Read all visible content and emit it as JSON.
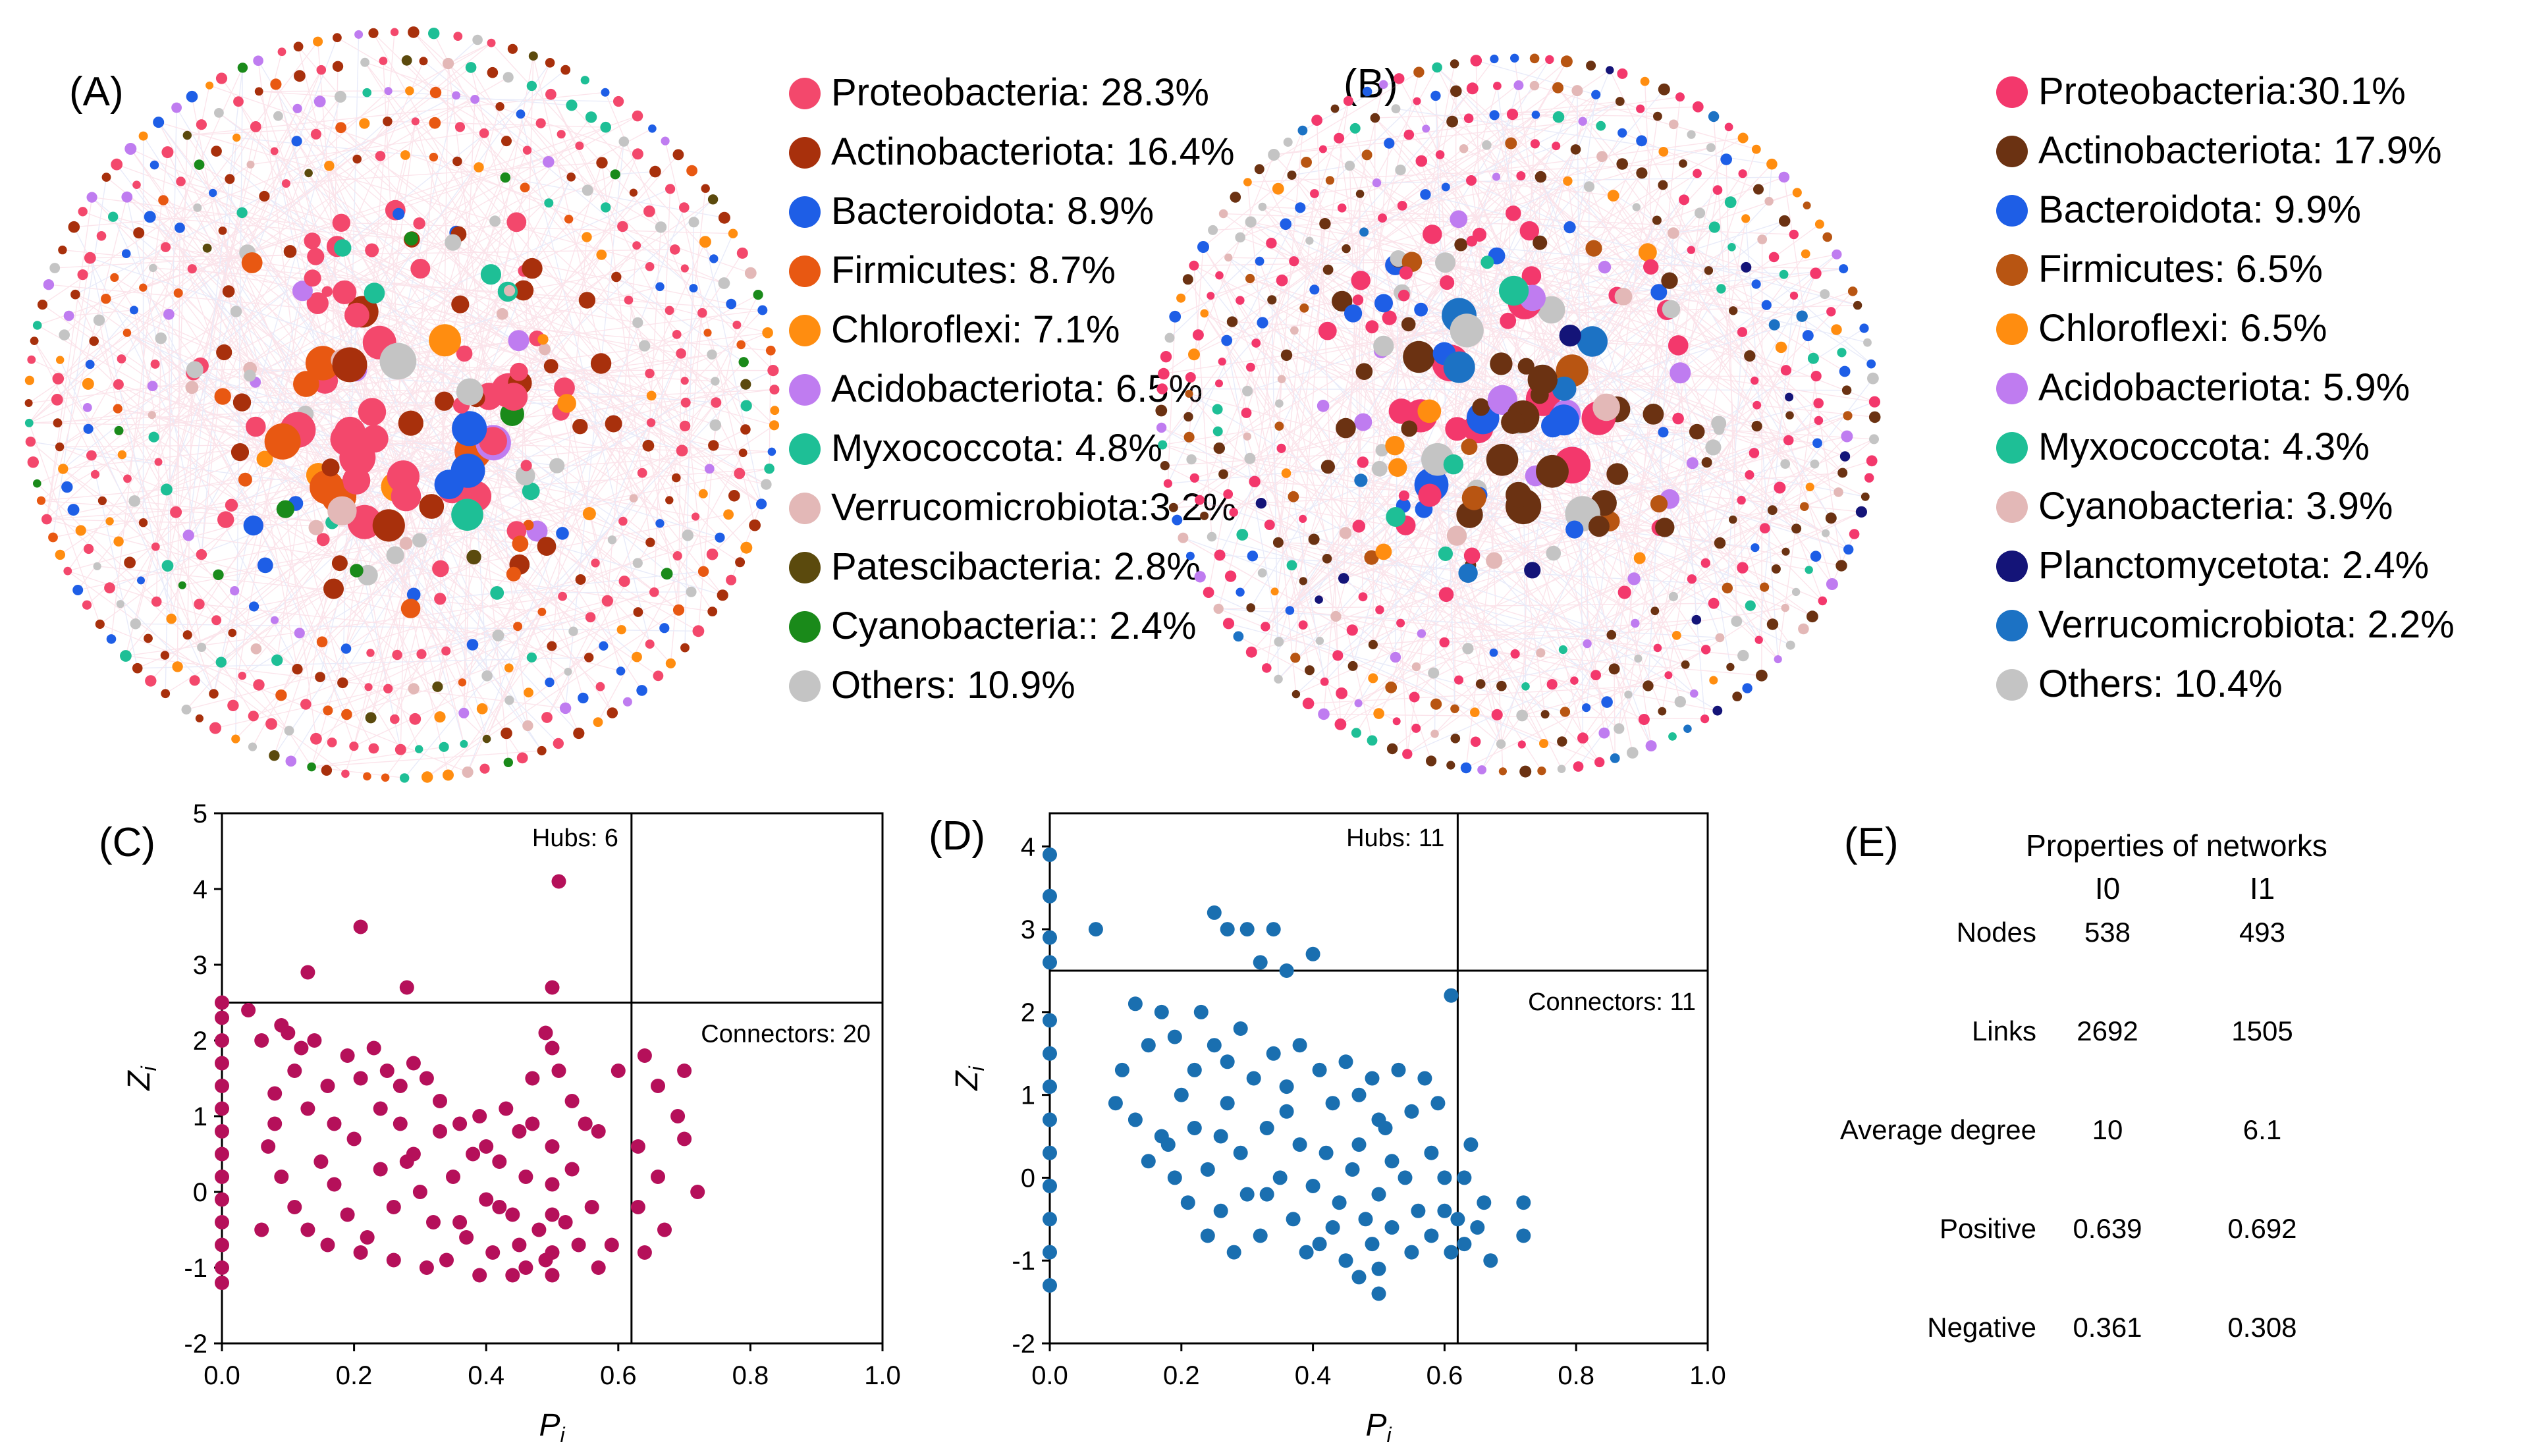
{
  "panels": {
    "A": {
      "label": "(A)",
      "legend": [
        {
          "name": "Proteobacteria: 28.3%",
          "color": "#f3486c"
        },
        {
          "name": "Actinobacteriota: 16.4%",
          "color": "#a8300c"
        },
        {
          "name": "Bacteroidota: 8.9%",
          "color": "#1e5ee6"
        },
        {
          "name": "Firmicutes: 8.7%",
          "color": "#e85812"
        },
        {
          "name": "Chloroflexi: 7.1%",
          "color": "#ff8d10"
        },
        {
          "name": "Acidobacteriota: 6.5%",
          "color": "#bf7cf0"
        },
        {
          "name": "Myxococcota: 4.8%",
          "color": "#1ebf96"
        },
        {
          "name": "Verrucomicrobiota:3.2%",
          "color": "#e3b8b7"
        },
        {
          "name": "Patescibacteria: 2.8%",
          "color": "#5b4a0d"
        },
        {
          "name": "Cyanobacteria:: 2.4%",
          "color": "#1a8a1a"
        },
        {
          "name": "Others: 10.9%",
          "color": "#c4c4c4"
        }
      ]
    },
    "B": {
      "label": "(B)",
      "legend": [
        {
          "name": "Proteobacteria:30.1%",
          "color": "#f3386c"
        },
        {
          "name": "Actinobacteriota: 17.9%",
          "color": "#6b3212"
        },
        {
          "name": "Bacteroidota: 9.9%",
          "color": "#1e5ee6"
        },
        {
          "name": "Firmicutes: 6.5%",
          "color": "#b85512"
        },
        {
          "name": "Chloroflexi: 6.5%",
          "color": "#ff8d10"
        },
        {
          "name": "Acidobacteriota: 5.9%",
          "color": "#bf7cf0"
        },
        {
          "name": "Myxococcota: 4.3%",
          "color": "#1ebf96"
        },
        {
          "name": "Cyanobacteria: 3.9%",
          "color": "#e3b8b7"
        },
        {
          "name": "Planctomycetota: 2.4%",
          "color": "#141478"
        },
        {
          "name": " Verrucomicrobiota: 2.2%",
          "color": "#1c72c4"
        },
        {
          "name": "Others: 10.4%",
          "color": "#c4c4c4"
        }
      ]
    },
    "E": {
      "label": "(E)",
      "title": "Properties of networks",
      "columns": [
        "I0",
        "I1"
      ],
      "rows": [
        {
          "label": "Nodes",
          "values": [
            "538",
            "493"
          ]
        },
        {
          "label": "Links",
          "values": [
            "2692",
            "1505"
          ]
        },
        {
          "label": "Average degree",
          "values": [
            "10",
            "6.1"
          ]
        },
        {
          "label": "Positive",
          "values": [
            "0.639",
            "0.692"
          ]
        },
        {
          "label": "Negative",
          "values": [
            "0.361",
            "0.308"
          ]
        }
      ]
    }
  },
  "chart_data": [
    {
      "type": "scatter",
      "panel": "(C)",
      "color": "#b5105a",
      "xlabel": "P",
      "xlabel_sub": "i",
      "ylabel": "Z",
      "ylabel_sub": "i",
      "xlim": [
        0,
        1.0
      ],
      "ylim": [
        -2,
        5
      ],
      "xticks": [
        "0.0",
        "0.2",
        "0.4",
        "0.6",
        "0.8",
        "1.0"
      ],
      "yticks": [
        "-2",
        "-1",
        "0",
        "1",
        "2",
        "3",
        "4",
        "5"
      ],
      "thresholds": {
        "x": 0.62,
        "y": 2.5
      },
      "annotations": {
        "hubs": "Hubs: 6",
        "connectors": "Connectors: 20"
      },
      "points": [
        [
          0.51,
          4.1
        ],
        [
          0.21,
          3.5
        ],
        [
          0.13,
          2.9
        ],
        [
          0.28,
          2.7
        ],
        [
          0.5,
          2.7
        ],
        [
          0.0,
          2.5
        ],
        [
          0.0,
          2.3
        ],
        [
          0.0,
          2.0
        ],
        [
          0.0,
          1.7
        ],
        [
          0.0,
          1.4
        ],
        [
          0.0,
          1.1
        ],
        [
          0.0,
          0.8
        ],
        [
          0.0,
          0.5
        ],
        [
          0.0,
          0.2
        ],
        [
          0.0,
          -0.1
        ],
        [
          0.0,
          -0.4
        ],
        [
          0.0,
          -0.7
        ],
        [
          0.0,
          -1.0
        ],
        [
          0.0,
          -1.2
        ],
        [
          0.04,
          2.4
        ],
        [
          0.06,
          2.0
        ],
        [
          0.08,
          1.3
        ],
        [
          0.09,
          2.2
        ],
        [
          0.1,
          2.1
        ],
        [
          0.11,
          1.6
        ],
        [
          0.12,
          1.9
        ],
        [
          0.14,
          2.0
        ],
        [
          0.16,
          1.4
        ],
        [
          0.19,
          1.8
        ],
        [
          0.21,
          1.5
        ],
        [
          0.23,
          1.9
        ],
        [
          0.25,
          1.6
        ],
        [
          0.27,
          1.4
        ],
        [
          0.29,
          1.7
        ],
        [
          0.31,
          1.5
        ],
        [
          0.33,
          1.2
        ],
        [
          0.36,
          0.9
        ],
        [
          0.39,
          1.0
        ],
        [
          0.43,
          1.1
        ],
        [
          0.45,
          0.8
        ],
        [
          0.47,
          1.5
        ],
        [
          0.49,
          2.1
        ],
        [
          0.5,
          1.9
        ],
        [
          0.51,
          1.6
        ],
        [
          0.53,
          1.2
        ],
        [
          0.55,
          0.9
        ],
        [
          0.57,
          0.8
        ],
        [
          0.6,
          1.6
        ],
        [
          0.64,
          1.8
        ],
        [
          0.66,
          1.4
        ],
        [
          0.7,
          1.6
        ],
        [
          0.07,
          0.6
        ],
        [
          0.09,
          0.2
        ],
        [
          0.11,
          -0.2
        ],
        [
          0.13,
          -0.5
        ],
        [
          0.15,
          0.4
        ],
        [
          0.17,
          0.1
        ],
        [
          0.19,
          -0.3
        ],
        [
          0.2,
          0.7
        ],
        [
          0.22,
          -0.6
        ],
        [
          0.24,
          0.3
        ],
        [
          0.26,
          -0.2
        ],
        [
          0.27,
          0.9
        ],
        [
          0.29,
          0.5
        ],
        [
          0.3,
          0.0
        ],
        [
          0.32,
          -0.4
        ],
        [
          0.33,
          0.8
        ],
        [
          0.35,
          0.2
        ],
        [
          0.37,
          -0.6
        ],
        [
          0.38,
          0.5
        ],
        [
          0.4,
          -0.1
        ],
        [
          0.41,
          -0.8
        ],
        [
          0.42,
          0.4
        ],
        [
          0.44,
          -0.3
        ],
        [
          0.45,
          -0.7
        ],
        [
          0.46,
          0.2
        ],
        [
          0.48,
          -0.5
        ],
        [
          0.49,
          -0.9
        ],
        [
          0.5,
          0.6
        ],
        [
          0.5,
          0.1
        ],
        [
          0.5,
          -0.3
        ],
        [
          0.5,
          -0.8
        ],
        [
          0.5,
          -1.1
        ],
        [
          0.52,
          -0.4
        ],
        [
          0.53,
          0.3
        ],
        [
          0.54,
          -0.7
        ],
        [
          0.56,
          -0.2
        ],
        [
          0.57,
          -1.0
        ],
        [
          0.59,
          -0.7
        ],
        [
          0.63,
          0.6
        ],
        [
          0.63,
          -0.2
        ],
        [
          0.64,
          -0.8
        ],
        [
          0.66,
          0.2
        ],
        [
          0.67,
          -0.5
        ],
        [
          0.69,
          1.0
        ],
        [
          0.7,
          0.7
        ],
        [
          0.72,
          0.0
        ],
        [
          0.13,
          1.1
        ],
        [
          0.17,
          0.9
        ],
        [
          0.24,
          1.1
        ],
        [
          0.28,
          0.4
        ],
        [
          0.34,
          -0.9
        ],
        [
          0.36,
          -0.4
        ],
        [
          0.39,
          -1.1
        ],
        [
          0.42,
          -0.2
        ],
        [
          0.46,
          -1.0
        ],
        [
          0.47,
          0.9
        ],
        [
          0.06,
          -0.5
        ],
        [
          0.08,
          0.9
        ],
        [
          0.16,
          -0.7
        ],
        [
          0.21,
          -0.8
        ],
        [
          0.26,
          -0.9
        ],
        [
          0.31,
          -1.0
        ],
        [
          0.4,
          0.6
        ],
        [
          0.44,
          -1.1
        ]
      ]
    },
    {
      "type": "scatter",
      "panel": "(D)",
      "color": "#1a6fb0",
      "xlabel": "P",
      "xlabel_sub": "i",
      "ylabel": "Z",
      "ylabel_sub": "i",
      "xlim": [
        0,
        1.0
      ],
      "ylim": [
        -2,
        4.4
      ],
      "xticks": [
        "0.0",
        "0.2",
        "0.4",
        "0.6",
        "0.8",
        "1.0"
      ],
      "yticks": [
        "-2",
        "-1",
        "0",
        "1",
        "2",
        "3",
        "4"
      ],
      "thresholds": {
        "x": 0.62,
        "y": 2.5
      },
      "annotations": {
        "hubs": "Hubs: 11",
        "connectors": "Connectors: 11"
      },
      "points": [
        [
          0.0,
          3.9
        ],
        [
          0.0,
          3.4
        ],
        [
          0.0,
          2.9
        ],
        [
          0.07,
          3.0
        ],
        [
          0.25,
          3.2
        ],
        [
          0.27,
          3.0
        ],
        [
          0.3,
          3.0
        ],
        [
          0.34,
          3.0
        ],
        [
          0.32,
          2.6
        ],
        [
          0.36,
          2.5
        ],
        [
          0.4,
          2.7
        ],
        [
          0.0,
          2.6
        ],
        [
          0.0,
          1.9
        ],
        [
          0.0,
          1.5
        ],
        [
          0.0,
          1.1
        ],
        [
          0.0,
          0.7
        ],
        [
          0.0,
          0.3
        ],
        [
          0.0,
          -0.1
        ],
        [
          0.0,
          -0.5
        ],
        [
          0.0,
          -0.9
        ],
        [
          0.0,
          -1.3
        ],
        [
          0.11,
          1.3
        ],
        [
          0.13,
          2.1
        ],
        [
          0.15,
          1.6
        ],
        [
          0.17,
          2.0
        ],
        [
          0.19,
          1.7
        ],
        [
          0.22,
          1.3
        ],
        [
          0.23,
          2.0
        ],
        [
          0.25,
          1.6
        ],
        [
          0.27,
          1.4
        ],
        [
          0.29,
          1.8
        ],
        [
          0.31,
          1.2
        ],
        [
          0.34,
          1.5
        ],
        [
          0.36,
          1.1
        ],
        [
          0.38,
          1.6
        ],
        [
          0.41,
          1.3
        ],
        [
          0.43,
          0.9
        ],
        [
          0.45,
          1.4
        ],
        [
          0.47,
          1.0
        ],
        [
          0.49,
          1.2
        ],
        [
          0.5,
          0.7
        ],
        [
          0.53,
          1.3
        ],
        [
          0.55,
          0.8
        ],
        [
          0.57,
          1.2
        ],
        [
          0.59,
          0.9
        ],
        [
          0.61,
          2.2
        ],
        [
          0.64,
          0.4
        ],
        [
          0.13,
          0.7
        ],
        [
          0.15,
          0.2
        ],
        [
          0.17,
          0.5
        ],
        [
          0.19,
          0.0
        ],
        [
          0.21,
          -0.3
        ],
        [
          0.22,
          0.6
        ],
        [
          0.24,
          0.1
        ],
        [
          0.26,
          -0.4
        ],
        [
          0.27,
          0.9
        ],
        [
          0.29,
          0.3
        ],
        [
          0.3,
          -0.2
        ],
        [
          0.32,
          -0.7
        ],
        [
          0.33,
          0.6
        ],
        [
          0.35,
          0.0
        ],
        [
          0.37,
          -0.5
        ],
        [
          0.38,
          0.4
        ],
        [
          0.4,
          -0.1
        ],
        [
          0.41,
          -0.8
        ],
        [
          0.42,
          0.3
        ],
        [
          0.44,
          -0.3
        ],
        [
          0.45,
          -1.0
        ],
        [
          0.46,
          0.1
        ],
        [
          0.48,
          -0.5
        ],
        [
          0.49,
          -0.8
        ],
        [
          0.5,
          -0.2
        ],
        [
          0.5,
          -1.1
        ],
        [
          0.5,
          -1.4
        ],
        [
          0.52,
          -0.6
        ],
        [
          0.54,
          0.0
        ],
        [
          0.56,
          -0.4
        ],
        [
          0.58,
          -0.7
        ],
        [
          0.6,
          0.0
        ],
        [
          0.61,
          -0.9
        ],
        [
          0.62,
          -0.5
        ],
        [
          0.63,
          -0.8
        ],
        [
          0.65,
          -0.6
        ],
        [
          0.67,
          -1.0
        ],
        [
          0.72,
          -0.3
        ],
        [
          0.72,
          -0.7
        ],
        [
          0.1,
          0.9
        ],
        [
          0.2,
          1.0
        ],
        [
          0.26,
          0.5
        ],
        [
          0.33,
          -0.2
        ],
        [
          0.36,
          0.8
        ],
        [
          0.39,
          -0.9
        ],
        [
          0.43,
          -0.6
        ],
        [
          0.47,
          0.4
        ],
        [
          0.52,
          0.2
        ],
        [
          0.55,
          -0.9
        ],
        [
          0.58,
          0.3
        ],
        [
          0.6,
          -0.4
        ],
        [
          0.63,
          0.0
        ],
        [
          0.66,
          -0.3
        ],
        [
          0.24,
          -0.7
        ],
        [
          0.28,
          -0.9
        ],
        [
          0.18,
          0.4
        ],
        [
          0.47,
          -1.2
        ],
        [
          0.51,
          0.6
        ]
      ]
    }
  ]
}
